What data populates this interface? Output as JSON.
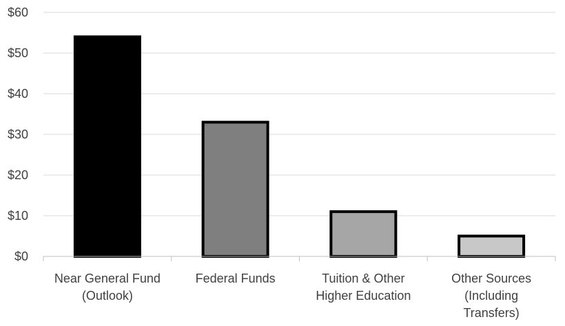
{
  "chart_data": {
    "type": "bar",
    "categories": [
      [
        "Near General Fund",
        "(Outlook)"
      ],
      [
        "Federal Funds"
      ],
      [
        "Tuition & Other",
        "Higher Education"
      ],
      [
        "Other Sources",
        "(Including",
        "Transfers)"
      ]
    ],
    "values": [
      54,
      33,
      11,
      5
    ],
    "bar_colors": [
      "#000000",
      "#7f7f7f",
      "#a6a6a6",
      "#c8c8c8"
    ],
    "title": "",
    "xlabel": "",
    "ylabel": "",
    "ylim": [
      0,
      60
    ],
    "yticks": [
      {
        "value": 0,
        "label": "$0"
      },
      {
        "value": 10,
        "label": "$10"
      },
      {
        "value": 20,
        "label": "$20"
      },
      {
        "value": 30,
        "label": "$30"
      },
      {
        "value": 40,
        "label": "$40"
      },
      {
        "value": 50,
        "label": "$50"
      },
      {
        "value": 60,
        "label": "$60"
      }
    ],
    "grid": true,
    "legend": "none"
  }
}
